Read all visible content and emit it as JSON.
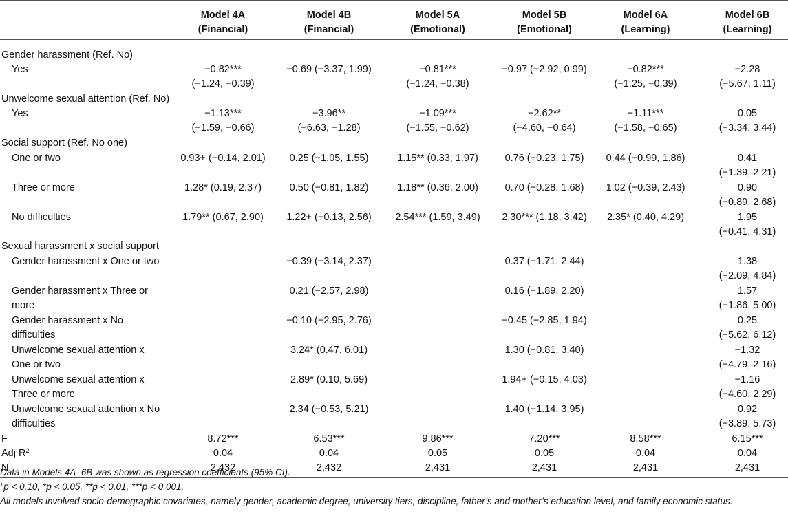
{
  "columns": [
    {
      "line1": "Model 4A",
      "line2": "(Financial)"
    },
    {
      "line1": "Model 4B",
      "line2": "(Financial)"
    },
    {
      "line1": "Model 5A",
      "line2": "(Emotional)"
    },
    {
      "line1": "Model 5B",
      "line2": "(Emotional)"
    },
    {
      "line1": "Model 6A",
      "line2": "(Learning)"
    },
    {
      "line1": "Model 6B",
      "line2": "(Learning)"
    }
  ],
  "rows": [
    {
      "label": "Gender harassment (Ref. No)",
      "indent": false,
      "cells": [
        "",
        "",
        "",
        "",
        "",
        ""
      ]
    },
    {
      "label": "Yes",
      "indent": true,
      "cells": [
        "−0.82***\n(−1.24, −0.39)",
        "−0.69 (−3.37, 1.99)",
        "−0.81***\n(−1.24, −0.38)",
        "−0.97 (−2.92, 0.99)",
        "−0.82***\n(−1.25, −0.39)",
        "−2.28\n(−5.67, 1.11)"
      ]
    },
    {
      "label": "Unwelcome sexual attention (Ref. No)",
      "indent": false,
      "cells": [
        "",
        "",
        "",
        "",
        "",
        ""
      ]
    },
    {
      "label": "Yes",
      "indent": true,
      "cells": [
        "−1.13***\n(−1.59, −0.66)",
        "−3.96**\n(−6.63, −1.28)",
        "−1.09***\n(−1.55, −0.62)",
        "−2.62**\n(−4.60, −0.64)",
        "−1.11***\n(−1.58, −0.65)",
        "0.05\n(−3.34, 3.44)"
      ]
    },
    {
      "label": "Social support (Ref. No one)",
      "indent": false,
      "cells": [
        "",
        "",
        "",
        "",
        "",
        ""
      ]
    },
    {
      "label": "One or two",
      "indent": true,
      "cells": [
        "0.93+ (−0.14, 2.01)",
        "0.25 (−1.05, 1.55)",
        "1.15** (0.33, 1.97)",
        "0.76 (−0.23, 1.75)",
        "0.44 (−0.99, 1.86)",
        "0.41\n(−1.39, 2.21)"
      ]
    },
    {
      "label": "Three or more",
      "indent": true,
      "cells": [
        "1.28* (0.19, 2.37)",
        "0.50 (−0.81, 1.82)",
        "1.18** (0.36, 2.00)",
        "0.70 (−0.28, 1.68)",
        "1.02 (−0.39, 2.43)",
        "0.90\n(−0.89, 2.68)"
      ]
    },
    {
      "label": "No difficulties",
      "indent": true,
      "cells": [
        "1.79** (0.67, 2.90)",
        "1.22+ (−0.13, 2.56)",
        "2.54*** (1.59, 3.49)",
        "2.30*** (1.18, 3.42)",
        "2.35* (0.40, 4.29)",
        "1.95\n(−0.41, 4.31)"
      ]
    },
    {
      "label": "Sexual harassment x social support",
      "indent": false,
      "cells": [
        "",
        "",
        "",
        "",
        "",
        ""
      ]
    },
    {
      "label": "Gender harassment x One or two",
      "indent": true,
      "cells": [
        "",
        "−0.39 (−3.14, 2.37)",
        "",
        "0.37 (−1.71, 2.44)",
        "",
        "1.38\n(−2.09, 4.84)"
      ]
    },
    {
      "label": "Gender harassment x Three or\nmore",
      "indent": true,
      "cells": [
        "",
        "0.21 (−2.57, 2.98)",
        "",
        "0.16 (−1.89, 2.20)",
        "",
        "1.57\n(−1.86, 5.00)"
      ]
    },
    {
      "label": "Gender harassment x No\ndifficulties",
      "indent": true,
      "cells": [
        "",
        "−0.10 (−2.95, 2.76)",
        "",
        "−0.45 (−2.85, 1.94)",
        "",
        "0.25\n(−5.62, 6.12)"
      ]
    },
    {
      "label": "Unwelcome sexual attention x\nOne or two",
      "indent": true,
      "cells": [
        "",
        "3.24* (0.47, 6.01)",
        "",
        "1.30 (−0.81, 3.40)",
        "",
        "−1.32\n(−4.79, 2.16)"
      ]
    },
    {
      "label": "Unwelcome sexual attention x\nThree or more",
      "indent": true,
      "cells": [
        "",
        "2.89* (0.10, 5.69)",
        "",
        "1.94+ (−0.15, 4.03)",
        "",
        "−1.16\n(−4.60, 2.29)"
      ]
    },
    {
      "label": "Unwelcome sexual attention x No\ndifficulties",
      "indent": true,
      "cells": [
        "",
        "2.34 (−0.53, 5.21)",
        "",
        "1.40 (−1.14, 3.95)",
        "",
        "0.92\n(−3.89, 5.73)"
      ]
    },
    {
      "label": "F",
      "indent": false,
      "cells": [
        "8.72***",
        "6.53***",
        "9.86***",
        "7.20***",
        "8.58***",
        "6.15***"
      ]
    },
    {
      "label": "Adj R",
      "label_sup": "2",
      "indent": false,
      "cells": [
        "0.04",
        "0.04",
        "0.05",
        "0.05",
        "0.04",
        "0.04"
      ]
    },
    {
      "label": "N",
      "indent": false,
      "cells": [
        "2,432",
        "2,432",
        "2,431",
        "2,431",
        "2,431",
        "2,431"
      ]
    }
  ],
  "notes": {
    "line1": "Data in Models 4A–6B was shown as regression coefficients (95% CI).",
    "line2_sup": "+",
    "line2": "p < 0.10, *p < 0.05, **p < 0.01, ***p < 0.001.",
    "line3": "All models involved socio-demographic covariates, namely gender, academic degree, university tiers, discipline, father’s and mother’s education level, and family economic status."
  }
}
